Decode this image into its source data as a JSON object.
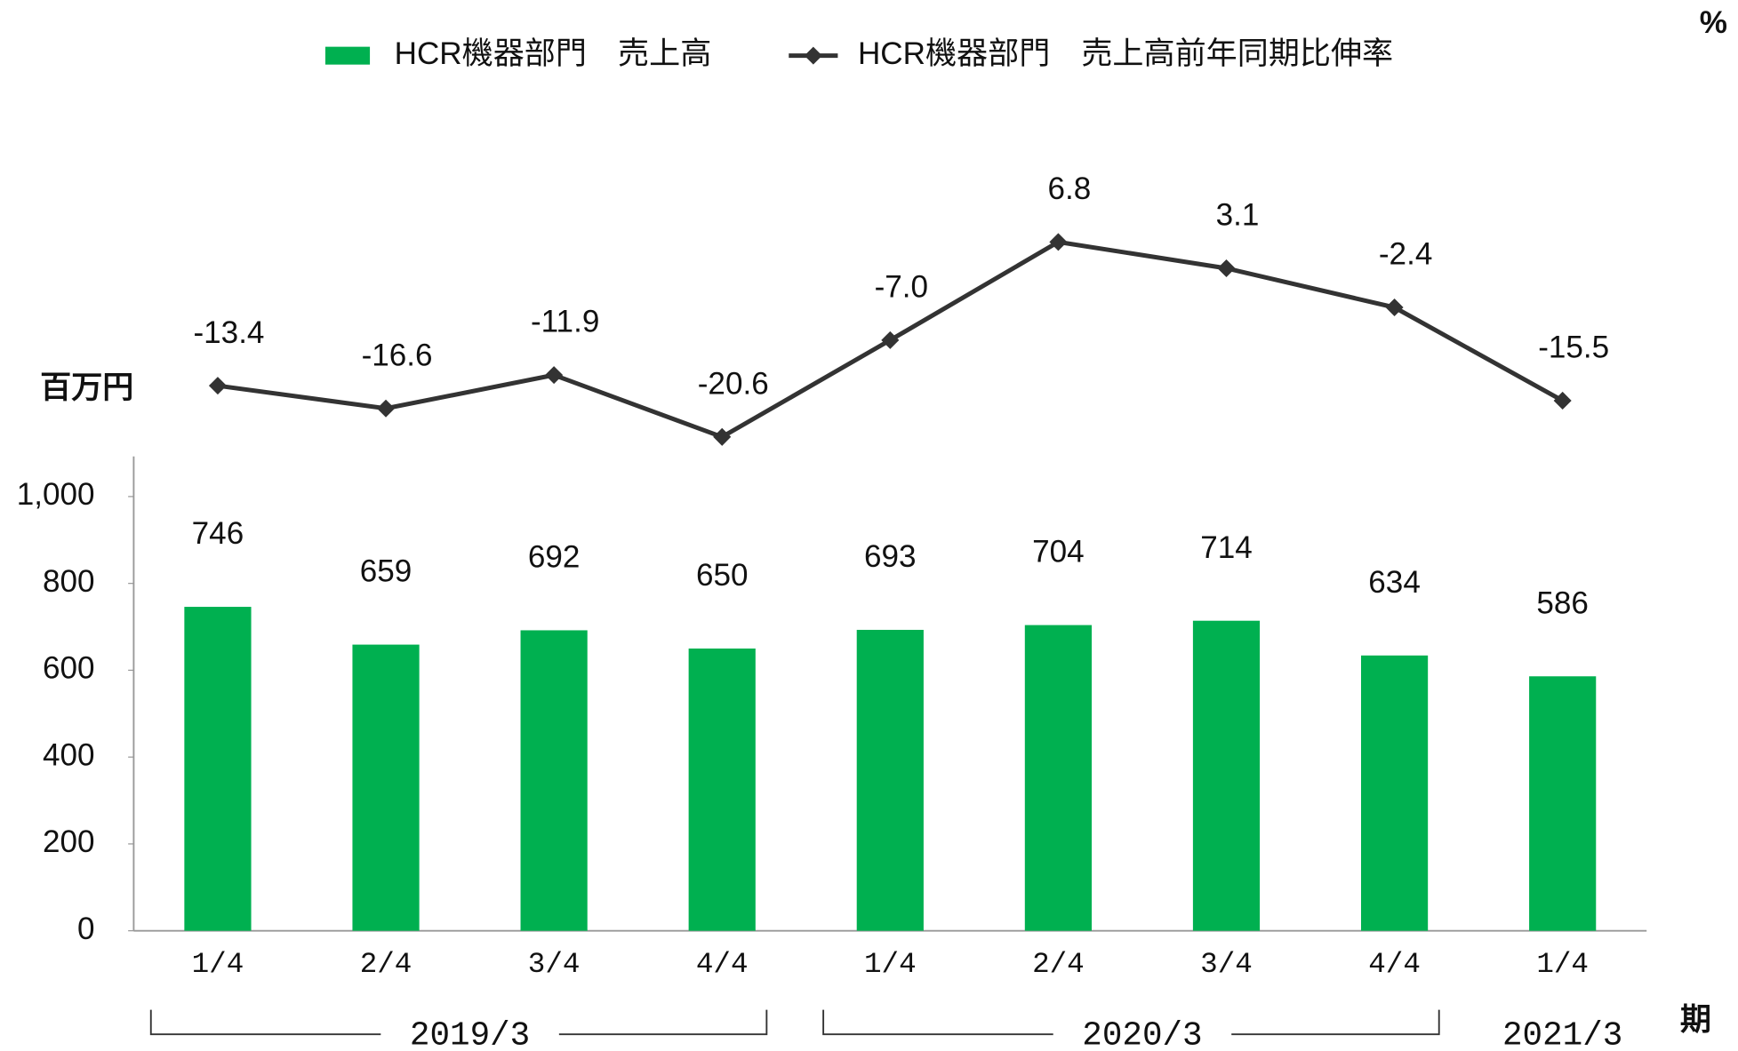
{
  "chart_data": {
    "type": "bar_line",
    "categories": [
      "1/4",
      "2/4",
      "3/4",
      "4/4",
      "1/4",
      "2/4",
      "3/4",
      "4/4",
      "1/4"
    ],
    "groups": [
      "2019/3",
      "2020/3",
      "2021/3"
    ],
    "y_axis_label": "百万円",
    "y2_axis_label": "%",
    "x_axis_label": "期",
    "ylim": [
      0,
      1000
    ],
    "yticks": [
      0,
      200,
      400,
      600,
      800,
      {
        "value": 1000,
        "label": "1,000"
      }
    ],
    "y2lim": [
      -90,
      25
    ],
    "legend": "top",
    "series": [
      {
        "name": "HCR機器部門　売上高",
        "color": "#00b050",
        "type": "bar",
        "values": [
          746,
          659,
          692,
          650,
          693,
          704,
          714,
          634,
          586
        ]
      },
      {
        "name": "HCR機器部門　売上高前年同期比伸率",
        "color": "#333333",
        "type": "line",
        "axis": "y2",
        "values": [
          -13.4,
          -16.6,
          -11.9,
          -20.6,
          -7,
          6.8,
          3.1,
          -2.4,
          -15.5
        ],
        "value_labels": [
          "-13.4",
          "-16.6",
          "-11.9",
          "-20.6",
          "-7.0",
          "6.8",
          "3.1",
          "-2.4",
          "-15.5"
        ]
      }
    ]
  }
}
